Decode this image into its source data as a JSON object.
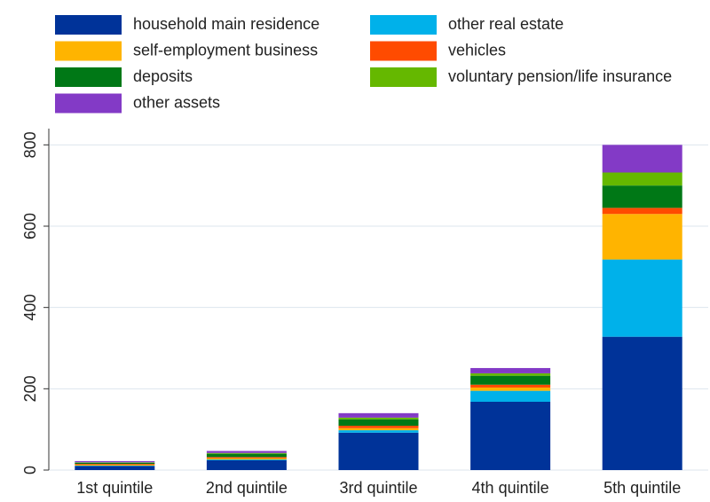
{
  "chart_data": {
    "type": "stacked_bar",
    "categories": [
      "1st quintile",
      "2nd quintile",
      "3rd quintile",
      "4th quintile",
      "5th quintile"
    ],
    "series": [
      {
        "name": "household main residence",
        "color": "#003399",
        "values": [
          10,
          24,
          92,
          168,
          328
        ]
      },
      {
        "name": "other real estate",
        "color": "#00b1ea",
        "values": [
          1,
          2,
          6,
          27,
          190
        ]
      },
      {
        "name": "self-employment business",
        "color": "#ffb400",
        "values": [
          2,
          3,
          5,
          8,
          112
        ]
      },
      {
        "name": "vehicles",
        "color": "#ff4b00",
        "values": [
          2,
          3,
          6,
          7,
          15
        ]
      },
      {
        "name": "deposits",
        "color": "#007816",
        "values": [
          3,
          8,
          16,
          22,
          55
        ]
      },
      {
        "name": "voluntary pension/life insurance",
        "color": "#65b800",
        "values": [
          1,
          2,
          4,
          6,
          32
        ]
      },
      {
        "name": "other assets",
        "color": "#833ac6",
        "values": [
          3,
          5,
          11,
          13,
          68
        ]
      }
    ],
    "ylim": [
      0,
      840
    ],
    "yticks": [
      0,
      200,
      400,
      600,
      800
    ],
    "grid": true
  }
}
